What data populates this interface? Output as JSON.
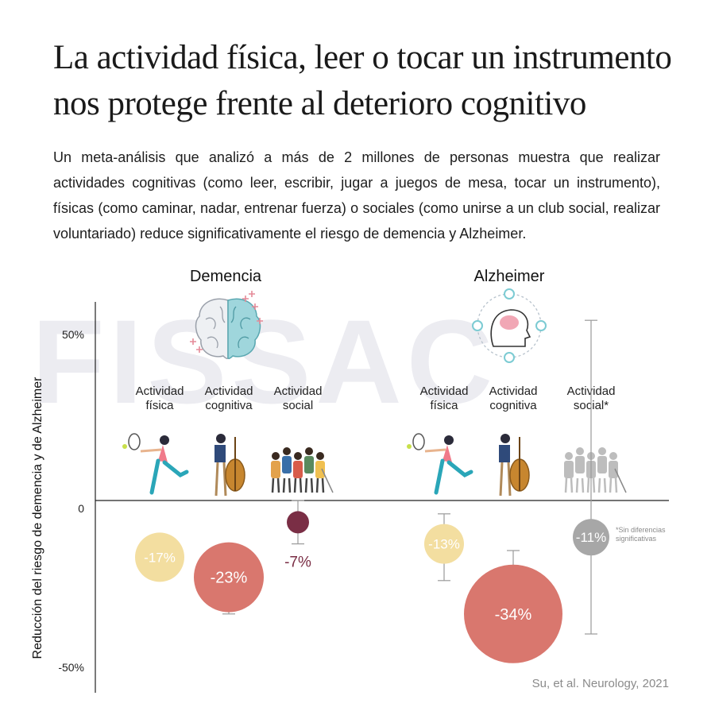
{
  "title": "La actividad física, leer o tocar un instrumento nos protege frente al deterioro cognitivo",
  "lead": "Un meta-análisis que analizó a más de 2 millones de personas muestra que realizar actividades cognitivas (como leer, escribir, jugar a juegos de mesa, tocar un instrumento), físicas (como caminar, nadar, entrenar fuerza) o sociales (como unirse a un club social, realizar voluntariado) reduce significativamente el riesgo de demencia y Alzheimer.",
  "watermark": "FISSAC",
  "source": "Su, et al. Neurology, 2021",
  "colors": {
    "fisica": "#f3dea0",
    "cognitiva": "#d9776e",
    "social": "#7a2e45",
    "nonsig": "#a7a7a7",
    "axis": "#222222",
    "whisker": "#9a9a9a"
  },
  "chart_data": {
    "type": "scatter",
    "ylabel": "Reducción del riesgo de demencia y de Alzheimer",
    "yticks": [
      "50%",
      "0",
      "-50%"
    ],
    "ylim": [
      -50,
      50
    ],
    "groups": [
      {
        "name": "Demencia",
        "icon": "brain-icon",
        "items": [
          {
            "label": [
              "Actividad",
              "física"
            ],
            "value": -17,
            "text": "-17%",
            "ci": null,
            "color": "fisica",
            "icon": "tennis-player-icon"
          },
          {
            "label": [
              "Actividad",
              "cognitiva"
            ],
            "value": -23,
            "text": "-23%",
            "ci": [
              -34,
              -14
            ],
            "color": "cognitiva",
            "icon": "cellist-icon"
          },
          {
            "label": [
              "Actividad",
              "social"
            ],
            "value": -7,
            "text": "-7%",
            "ci": [
              -13,
              0
            ],
            "color": "social",
            "icon": "group-people-icon"
          }
        ]
      },
      {
        "name": "Alzheimer",
        "icon": "head-brain-icon",
        "items": [
          {
            "label": [
              "Actividad",
              "física"
            ],
            "value": -13,
            "text": "-13%",
            "ci": [
              -24,
              -4
            ],
            "color": "fisica",
            "icon": "tennis-player-icon"
          },
          {
            "label": [
              "Actividad",
              "cognitiva"
            ],
            "value": -34,
            "text": "-34%",
            "ci": [
              -48,
              -15
            ],
            "color": "cognitiva",
            "icon": "cellist-icon"
          },
          {
            "label": [
              "Actividad",
              "social*"
            ],
            "value": -11,
            "text": "-11%",
            "ci": [
              -40,
              27
            ],
            "color": "nonsig",
            "icon": "group-people-icon"
          }
        ]
      }
    ],
    "footnote": [
      "*Sin diferencias",
      "significativas"
    ]
  }
}
